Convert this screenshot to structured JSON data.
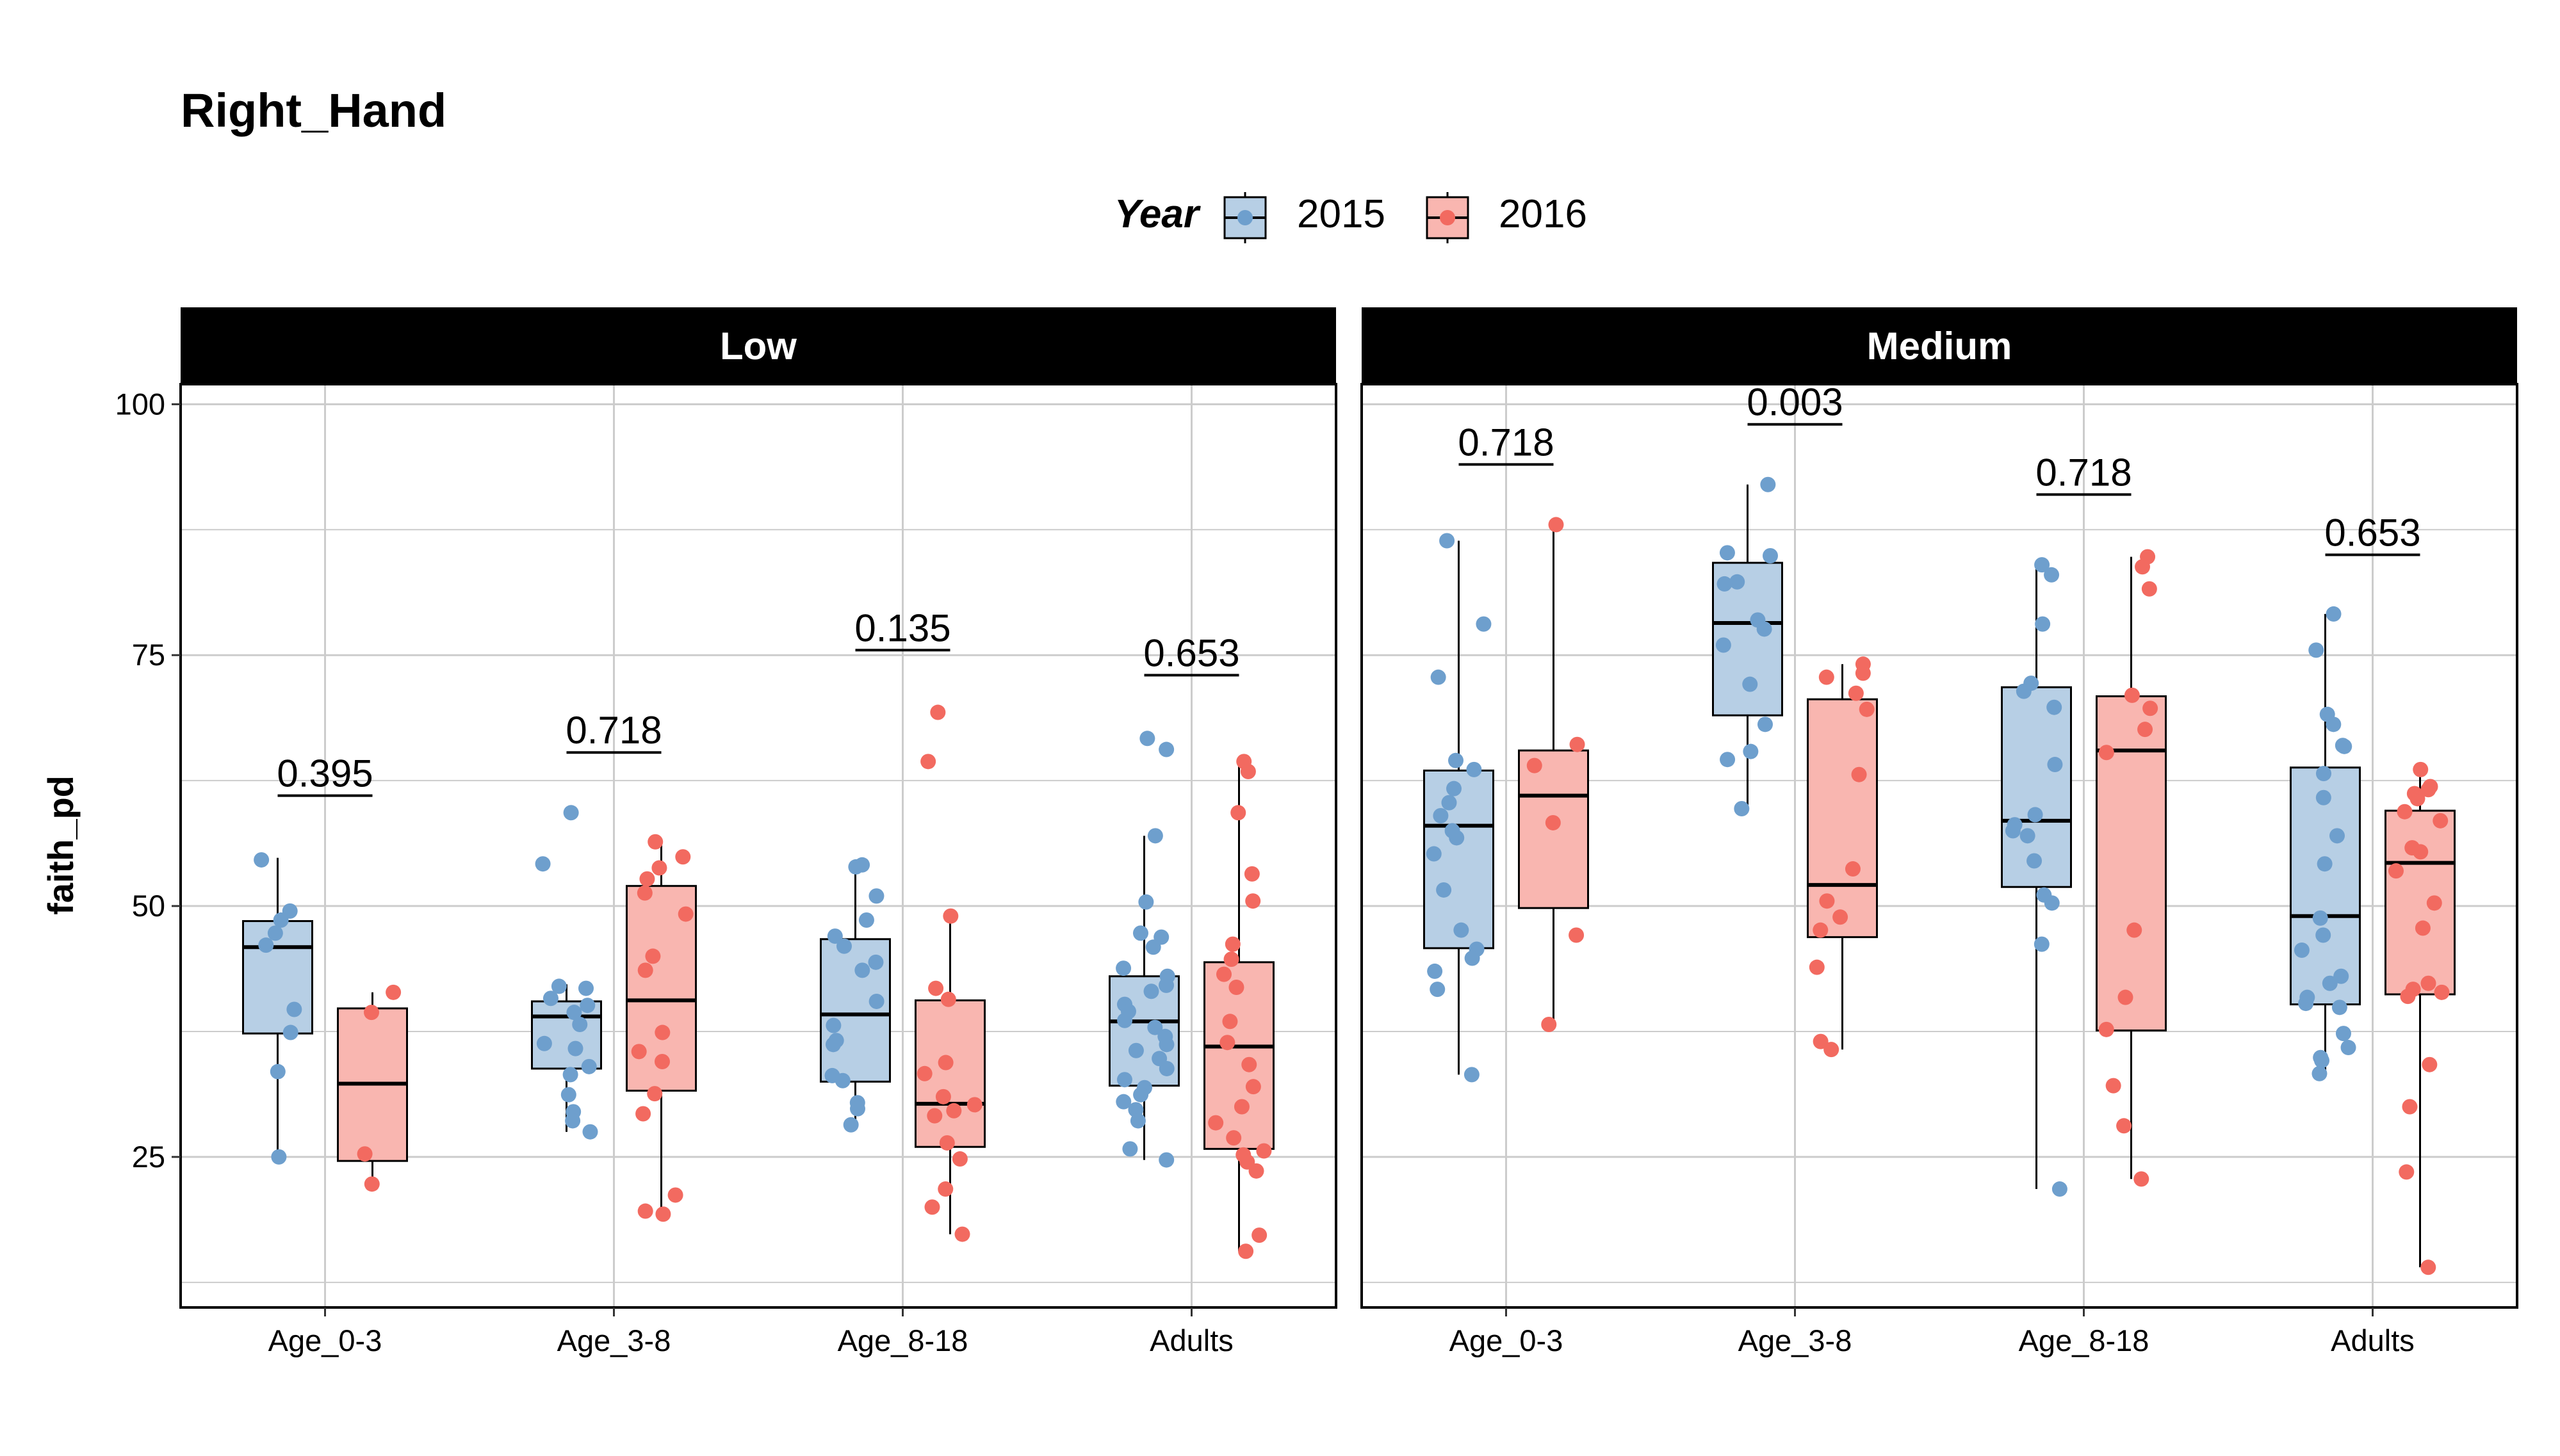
{
  "chart_data": {
    "type": "boxplot",
    "title": "Right_Hand",
    "ylabel": "faith_pd",
    "xlabel": "",
    "ylim": [
      10,
      102
    ],
    "yticks": [
      25,
      50,
      75,
      100
    ],
    "grid": true,
    "legend": {
      "title": "Year",
      "position": "top",
      "entries": [
        {
          "name": "2015",
          "color": "#6e9fcd",
          "fill": "#b7cfe5"
        },
        {
          "name": "2016",
          "color": "#f26a60",
          "fill": "#f9b6b0"
        }
      ]
    },
    "categories": [
      "Age_0-3",
      "Age_3-8",
      "Age_8-18",
      "Adults"
    ],
    "panels": [
      {
        "name": "Low",
        "groups": [
          {
            "category": "Age_0-3",
            "p_value": "0.395",
            "p_y": 61,
            "boxes": {
              "2015": {
                "min": 25,
                "q1": 37.3,
                "median": 45.9,
                "q3": 48.5,
                "max": 54.8,
                "points": [
                  54.6,
                  49.5,
                  48.6,
                  47.3,
                  46.1,
                  39.7,
                  37.4,
                  33.5,
                  25.0
                ]
              },
              "2016": {
                "min": 22.3,
                "q1": 24.6,
                "median": 32.3,
                "q3": 39.8,
                "max": 41.4,
                "points": [
                  41.4,
                  39.4,
                  25.3,
                  22.3
                ]
              }
            }
          },
          {
            "category": "Age_3-8",
            "p_value": "0.718",
            "p_y": 65.3,
            "boxes": {
              "2015": {
                "min": 27.5,
                "q1": 33.8,
                "median": 39.0,
                "q3": 40.5,
                "max": 42.2,
                "points": [
                  59.3,
                  54.2,
                  42.0,
                  41.8,
                  40.8,
                  40.1,
                  39.4,
                  38.2,
                  36.3,
                  35.8,
                  34.0,
                  33.2,
                  31.2,
                  29.5,
                  28.6,
                  27.5
                ]
              },
              "2016": {
                "min": 19.3,
                "q1": 31.6,
                "median": 40.6,
                "q3": 52.0,
                "max": 56.4,
                "points": [
                  56.4,
                  54.9,
                  53.8,
                  52.7,
                  51.3,
                  49.2,
                  45.0,
                  43.6,
                  37.4,
                  35.5,
                  34.5,
                  31.3,
                  29.3,
                  21.2,
                  19.6,
                  19.3
                ]
              }
            }
          },
          {
            "category": "Age_8-18",
            "p_value": "0.135",
            "p_y": 75.5,
            "boxes": {
              "2015": {
                "min": 28.2,
                "q1": 32.5,
                "median": 39.2,
                "q3": 46.7,
                "max": 54.1,
                "points": [
                  54.1,
                  53.9,
                  51.0,
                  48.6,
                  47.0,
                  46.0,
                  44.4,
                  43.6,
                  40.5,
                  38.1,
                  36.6,
                  36.2,
                  33.1,
                  32.6,
                  30.4,
                  29.8,
                  28.2
                ]
              },
              "2016": {
                "min": 17.3,
                "q1": 26.0,
                "median": 30.3,
                "q3": 40.6,
                "max": 49.0,
                "points": [
                  69.3,
                  64.4,
                  49.0,
                  41.8,
                  40.7,
                  34.4,
                  33.3,
                  31.0,
                  30.2,
                  29.6,
                  29.1,
                  26.4,
                  24.8,
                  21.8,
                  20.0,
                  17.3
                ]
              }
            }
          },
          {
            "category": "Adults",
            "p_value": "0.653",
            "p_y": 73,
            "boxes": {
              "2015": {
                "min": 24.7,
                "q1": 32.1,
                "median": 38.5,
                "q3": 43.0,
                "max": 57.0,
                "points": [
                  66.7,
                  65.6,
                  57.0,
                  50.4,
                  47.3,
                  46.9,
                  45.9,
                  43.8,
                  43.0,
                  42.1,
                  41.5,
                  40.2,
                  39.5,
                  38.6,
                  37.9,
                  37.0,
                  36.2,
                  35.6,
                  34.8,
                  33.8,
                  32.7,
                  31.9,
                  31.2,
                  30.5,
                  29.7,
                  28.6,
                  25.8,
                  24.7
                ]
              },
              "2016": {
                "min": 15.6,
                "q1": 25.8,
                "median": 36.0,
                "q3": 44.4,
                "max": 64.4,
                "points": [
                  64.4,
                  63.4,
                  59.3,
                  53.2,
                  50.5,
                  46.2,
                  44.7,
                  43.2,
                  41.9,
                  38.5,
                  36.4,
                  34.2,
                  32.0,
                  30.0,
                  28.4,
                  26.9,
                  25.6,
                  25.2,
                  24.5,
                  23.6,
                  17.2,
                  15.6
                ]
              }
            }
          }
        ]
      },
      {
        "name": "Medium",
        "groups": [
          {
            "category": "Age_0-3",
            "p_value": "0.718",
            "p_y": 94,
            "boxes": {
              "2015": {
                "min": 33.2,
                "q1": 45.8,
                "median": 58.0,
                "q3": 63.5,
                "max": 86.4,
                "points": [
                  86.4,
                  78.1,
                  72.8,
                  64.5,
                  63.6,
                  61.7,
                  60.3,
                  59.0,
                  57.5,
                  56.8,
                  55.2,
                  51.6,
                  47.6,
                  45.7,
                  44.8,
                  43.5,
                  41.7,
                  33.2
                ]
              },
              "2016": {
                "min": 38.2,
                "q1": 49.8,
                "median": 61.0,
                "q3": 65.5,
                "max": 88.0,
                "points": [
                  88.0,
                  66.1,
                  64.0,
                  58.3,
                  47.1,
                  38.2
                ]
              }
            }
          },
          {
            "category": "Age_3-8",
            "p_value": "0.003",
            "p_y": 98,
            "boxes": {
              "2015": {
                "min": 59.7,
                "q1": 69.0,
                "median": 78.2,
                "q3": 84.2,
                "max": 92.0,
                "points": [
                  92.0,
                  85.2,
                  84.9,
                  82.3,
                  82.1,
                  78.5,
                  77.6,
                  76.0,
                  72.1,
                  68.1,
                  65.4,
                  64.6,
                  59.7
                ]
              },
              "2016": {
                "min": 35.7,
                "q1": 46.9,
                "median": 52.1,
                "q3": 70.6,
                "max": 74.1,
                "points": [
                  74.1,
                  73.2,
                  72.8,
                  71.2,
                  69.6,
                  63.1,
                  53.7,
                  50.5,
                  48.9,
                  47.6,
                  43.9,
                  36.5,
                  35.7
                ]
              }
            }
          },
          {
            "category": "Age_8-18",
            "p_value": "0.718",
            "p_y": 91,
            "boxes": {
              "2015": {
                "min": 21.8,
                "q1": 51.9,
                "median": 58.5,
                "q3": 71.8,
                "max": 84.0,
                "points": [
                  84.0,
                  83.0,
                  78.1,
                  72.2,
                  71.4,
                  69.8,
                  64.1,
                  59.1,
                  58.1,
                  57.5,
                  57.0,
                  54.5,
                  51.1,
                  50.3,
                  46.2,
                  21.8
                ]
              },
              "2016": {
                "min": 22.8,
                "q1": 37.6,
                "median": 65.5,
                "q3": 70.9,
                "max": 84.8,
                "points": [
                  84.8,
                  83.8,
                  81.6,
                  71.0,
                  69.7,
                  67.6,
                  65.3,
                  47.6,
                  40.9,
                  37.7,
                  32.1,
                  28.1,
                  22.8
                ]
              }
            }
          },
          {
            "category": "Adults",
            "p_value": "0.653",
            "p_y": 85,
            "boxes": {
              "2015": {
                "min": 33.3,
                "q1": 40.2,
                "median": 49.0,
                "q3": 63.8,
                "max": 79.1,
                "points": [
                  79.1,
                  75.5,
                  69.1,
                  68.1,
                  66.0,
                  65.9,
                  63.2,
                  60.8,
                  57.0,
                  54.2,
                  48.8,
                  47.1,
                  45.6,
                  43.0,
                  42.3,
                  40.9,
                  40.3,
                  39.9,
                  37.3,
                  35.9,
                  34.9,
                  34.6,
                  33.3
                ]
              },
              "2016": {
                "min": 14.0,
                "q1": 41.2,
                "median": 54.3,
                "q3": 59.5,
                "max": 63.6,
                "points": [
                  63.6,
                  61.9,
                  61.6,
                  61.2,
                  60.7,
                  59.4,
                  58.5,
                  55.8,
                  55.4,
                  53.5,
                  50.3,
                  47.8,
                  42.3,
                  41.7,
                  41.4,
                  41.0,
                  34.2,
                  30.0,
                  23.5,
                  14.0
                ]
              }
            }
          }
        ]
      }
    ]
  }
}
